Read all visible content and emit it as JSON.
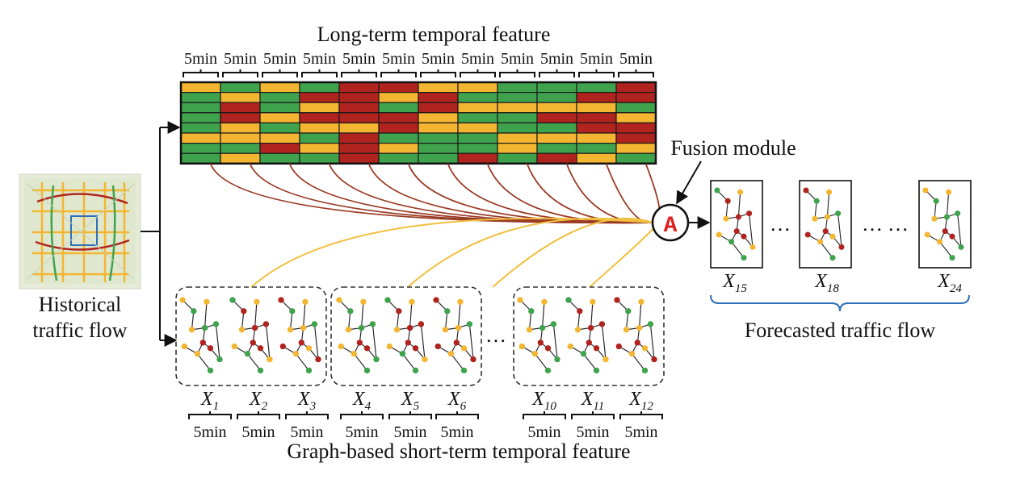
{
  "title_top": "Long-term temporal feature",
  "title_bottom": "Graph-based short-term temporal feature",
  "input_label": [
    "Historical",
    "traffic flow"
  ],
  "fusion_label": "Fusion module",
  "fusion_symbol": "A",
  "output_label": "Forecasted traffic flow",
  "interval_label": "5min",
  "long_term_intervals": [
    "5min",
    "5min",
    "5min",
    "5min",
    "5min",
    "5min",
    "5min",
    "5min",
    "5min",
    "5min",
    "5min",
    "5min"
  ],
  "short_term_intervals": [
    "5min",
    "5min",
    "5min",
    "5min",
    "5min",
    "5min",
    "5min",
    "5min",
    "5min"
  ],
  "short_term_steps": [
    {
      "base": "X",
      "sub": "1"
    },
    {
      "base": "X",
      "sub": "2"
    },
    {
      "base": "X",
      "sub": "3"
    },
    {
      "base": "X",
      "sub": "4"
    },
    {
      "base": "X",
      "sub": "5"
    },
    {
      "base": "X",
      "sub": "6"
    },
    {
      "base": "X",
      "sub": "10"
    },
    {
      "base": "X",
      "sub": "11"
    },
    {
      "base": "X",
      "sub": "12"
    }
  ],
  "forecast_steps": [
    {
      "base": "X",
      "sub": "15"
    },
    {
      "base": "X",
      "sub": "18"
    },
    {
      "base": "X",
      "sub": "24"
    }
  ],
  "ellipsis": "…",
  "colors": {
    "green": "#3fa34d",
    "yellow": "#f4b531",
    "red": "#b0231e",
    "long_link": "#9a3a24",
    "short_link": "#f0c040",
    "fusion_symbol": "#e02020",
    "brace_blue": "#2f6fb5"
  },
  "heatmap": [
    [
      "y",
      "g",
      "y",
      "g",
      "r",
      "r",
      "y",
      "y",
      "g",
      "g",
      "g",
      "r"
    ],
    [
      "g",
      "y",
      "g",
      "r",
      "r",
      "y",
      "r",
      "g",
      "g",
      "g",
      "r",
      "r"
    ],
    [
      "g",
      "r",
      "g",
      "y",
      "r",
      "g",
      "r",
      "y",
      "y",
      "y",
      "y",
      "g"
    ],
    [
      "g",
      "r",
      "y",
      "r",
      "r",
      "r",
      "y",
      "g",
      "g",
      "r",
      "r",
      "y"
    ],
    [
      "g",
      "y",
      "g",
      "y",
      "y",
      "r",
      "y",
      "y",
      "g",
      "g",
      "r",
      "r"
    ],
    [
      "y",
      "y",
      "y",
      "g",
      "r",
      "g",
      "g",
      "g",
      "y",
      "y",
      "y",
      "r"
    ],
    [
      "g",
      "g",
      "r",
      "y",
      "r",
      "y",
      "g",
      "g",
      "y",
      "g",
      "g",
      "y"
    ],
    [
      "g",
      "y",
      "g",
      "g",
      "r",
      "g",
      "g",
      "r",
      "g",
      "r",
      "y",
      "g"
    ]
  ]
}
